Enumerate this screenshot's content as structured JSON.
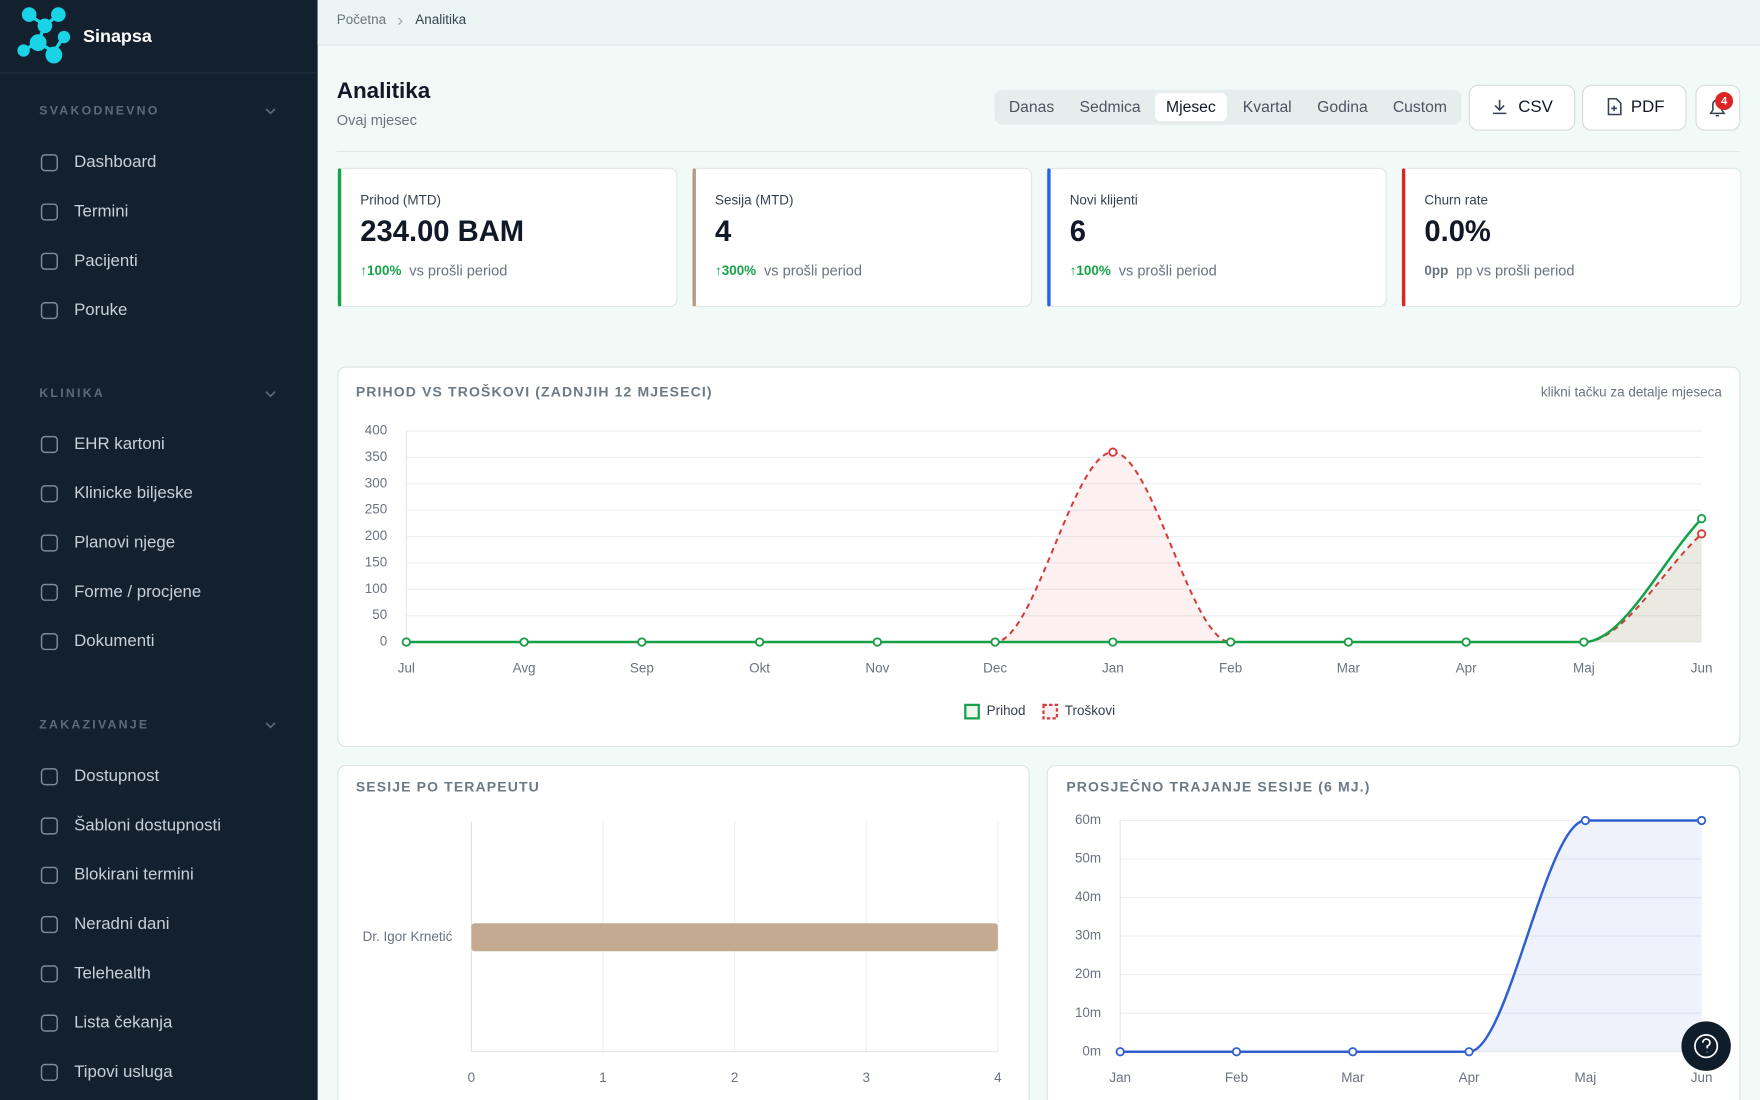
{
  "sidebar": {
    "brand": "Sinapsa",
    "sections": [
      {
        "title": "SVAKODNEVNO",
        "items": [
          "Dashboard",
          "Termini",
          "Pacijenti",
          "Poruke"
        ]
      },
      {
        "title": "KLINIKA",
        "items": [
          "EHR kartoni",
          "Klinicke biljeske",
          "Planovi njege",
          "Forme / procjene",
          "Dokumenti"
        ]
      },
      {
        "title": "ZAKAZIVANJE",
        "items": [
          "Dostupnost",
          "Šabloni dostupnosti",
          "Blokirani termini",
          "Neradni dani",
          "Telehealth",
          "Lista čekanja",
          "Tipovi usluga"
        ]
      }
    ]
  },
  "breadcrumb": [
    "Početna",
    "Analitika"
  ],
  "header": {
    "title": "Analitika",
    "subtitle": "Ovaj mjesec",
    "periods": [
      "Danas",
      "Sedmica",
      "Mjesec",
      "Kvartal",
      "Godina",
      "Custom"
    ],
    "active_period": 2,
    "exports": [
      "CSV",
      "PDF"
    ],
    "notification_count": 4
  },
  "kpis": [
    {
      "label": "Prihod (MTD)",
      "value": "234.00 BAM",
      "change": "↑100%",
      "comparison": "vs prošli period",
      "color": "#16a34a",
      "change_color": "#16a34a"
    },
    {
      "label": "Sesija (MTD)",
      "value": "4",
      "change": "↑300%",
      "comparison": "vs prošli period",
      "color": "#b89a80",
      "change_color": "#16a34a"
    },
    {
      "label": "Novi klijenti",
      "value": "6",
      "change": "↑100%",
      "comparison": "vs prošli period",
      "color": "#2563eb",
      "change_color": "#16a34a"
    },
    {
      "label": "Churn rate",
      "value": "0.0%",
      "change": "0pp",
      "comparison": "pp vs prošli period",
      "color": "#dc2626",
      "change_color": "#6b7280"
    }
  ],
  "chart_data": [
    {
      "type": "line",
      "title": "PRIHOD VS TROŠKOVI (ZADNJIH 12 MJESECI)",
      "note": "klikni tačku za detalje mjeseca",
      "categories": [
        "Jul",
        "Avg",
        "Sep",
        "Okt",
        "Nov",
        "Dec",
        "Jan",
        "Feb",
        "Mar",
        "Apr",
        "Maj",
        "Jun"
      ],
      "series": [
        {
          "name": "Prihod",
          "color": "#16a04a",
          "dashed": false,
          "values": [
            0,
            0,
            0,
            0,
            0,
            0,
            0,
            0,
            0,
            0,
            0,
            234
          ]
        },
        {
          "name": "Troškovi",
          "color": "#d63a3a",
          "dashed": true,
          "values": [
            0,
            0,
            0,
            0,
            0,
            0,
            360,
            0,
            0,
            0,
            0,
            205
          ]
        }
      ],
      "ylim": [
        0,
        400
      ],
      "yticks": [
        0,
        50,
        100,
        150,
        200,
        250,
        300,
        350,
        400
      ],
      "grid": true,
      "smooth": true,
      "area": true,
      "legend": "bottom"
    },
    {
      "type": "bar",
      "horizontal": true,
      "title": "SESIJE PO TERAPEUTU",
      "categories": [
        "Dr. Igor Krnetić"
      ],
      "values": [
        4
      ],
      "color": "#c4aa90",
      "xlim": [
        0,
        4
      ],
      "xticks": [
        0,
        1,
        2,
        3,
        4
      ],
      "grid": true
    },
    {
      "type": "line",
      "title": "PROSJEČNO TRAJANJE SESIJE (6 MJ.)",
      "categories": [
        "Jan",
        "Feb",
        "Mar",
        "Apr",
        "Maj",
        "Jun"
      ],
      "series": [
        {
          "color": "#2f5fcf",
          "dashed": false,
          "values": [
            0,
            0,
            0,
            0,
            60,
            60
          ]
        }
      ],
      "ylim": [
        0,
        60
      ],
      "yticks": [
        {
          "value": 0,
          "label": "0m"
        },
        {
          "value": 10,
          "label": "10m"
        },
        {
          "value": 20,
          "label": "20m"
        },
        {
          "value": 30,
          "label": "30m"
        },
        {
          "value": 40,
          "label": "40m"
        },
        {
          "value": 50,
          "label": "50m"
        },
        {
          "value": 60,
          "label": "60m"
        }
      ],
      "grid": true,
      "smooth": true,
      "area": true
    }
  ]
}
